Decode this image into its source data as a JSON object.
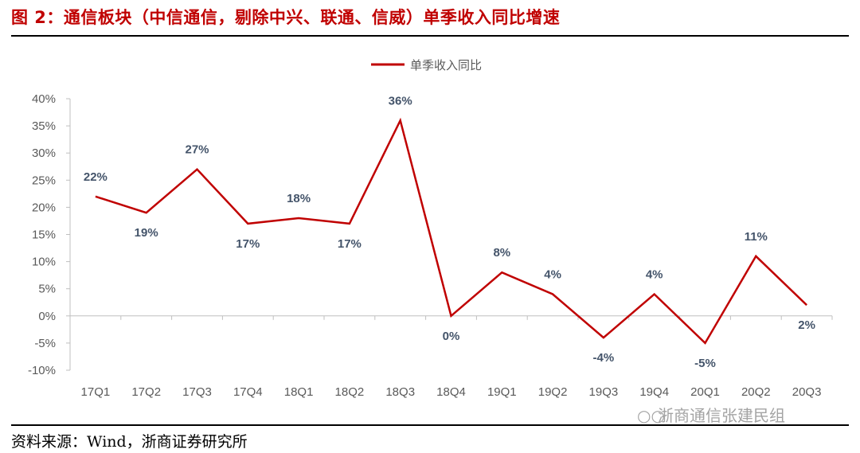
{
  "figure": {
    "title": "图 2：通信板块（中信通信，剔除中兴、联通、信威）单季收入同比增速",
    "source": "资料来源：Wind，浙商证券研究所",
    "watermark": "浙商通信张建民组",
    "watermark_icon": "wechat-icon"
  },
  "chart_data": {
    "type": "line",
    "categories": [
      "17Q1",
      "17Q2",
      "17Q3",
      "17Q4",
      "18Q1",
      "18Q2",
      "18Q3",
      "18Q4",
      "19Q1",
      "19Q2",
      "19Q3",
      "19Q4",
      "20Q1",
      "20Q2",
      "20Q3"
    ],
    "series": [
      {
        "name": "单季收入同比",
        "color": "#c00000",
        "values": [
          22,
          19,
          27,
          17,
          18,
          17,
          36,
          0,
          8,
          4,
          -4,
          4,
          -5,
          11,
          2
        ],
        "labels": [
          "22%",
          "19%",
          "27%",
          "17%",
          "18%",
          "17%",
          "36%",
          "0%",
          "8%",
          "4%",
          "-4%",
          "4%",
          "-5%",
          "11%",
          "2%"
        ]
      }
    ],
    "yticks": [
      "40%",
      "35%",
      "30%",
      "25%",
      "20%",
      "15%",
      "10%",
      "5%",
      "0%",
      "-5%",
      "-10%"
    ],
    "ylim": [
      -10,
      40
    ],
    "ytick_step": 5,
    "grid": false,
    "legend_position": "top-center"
  }
}
